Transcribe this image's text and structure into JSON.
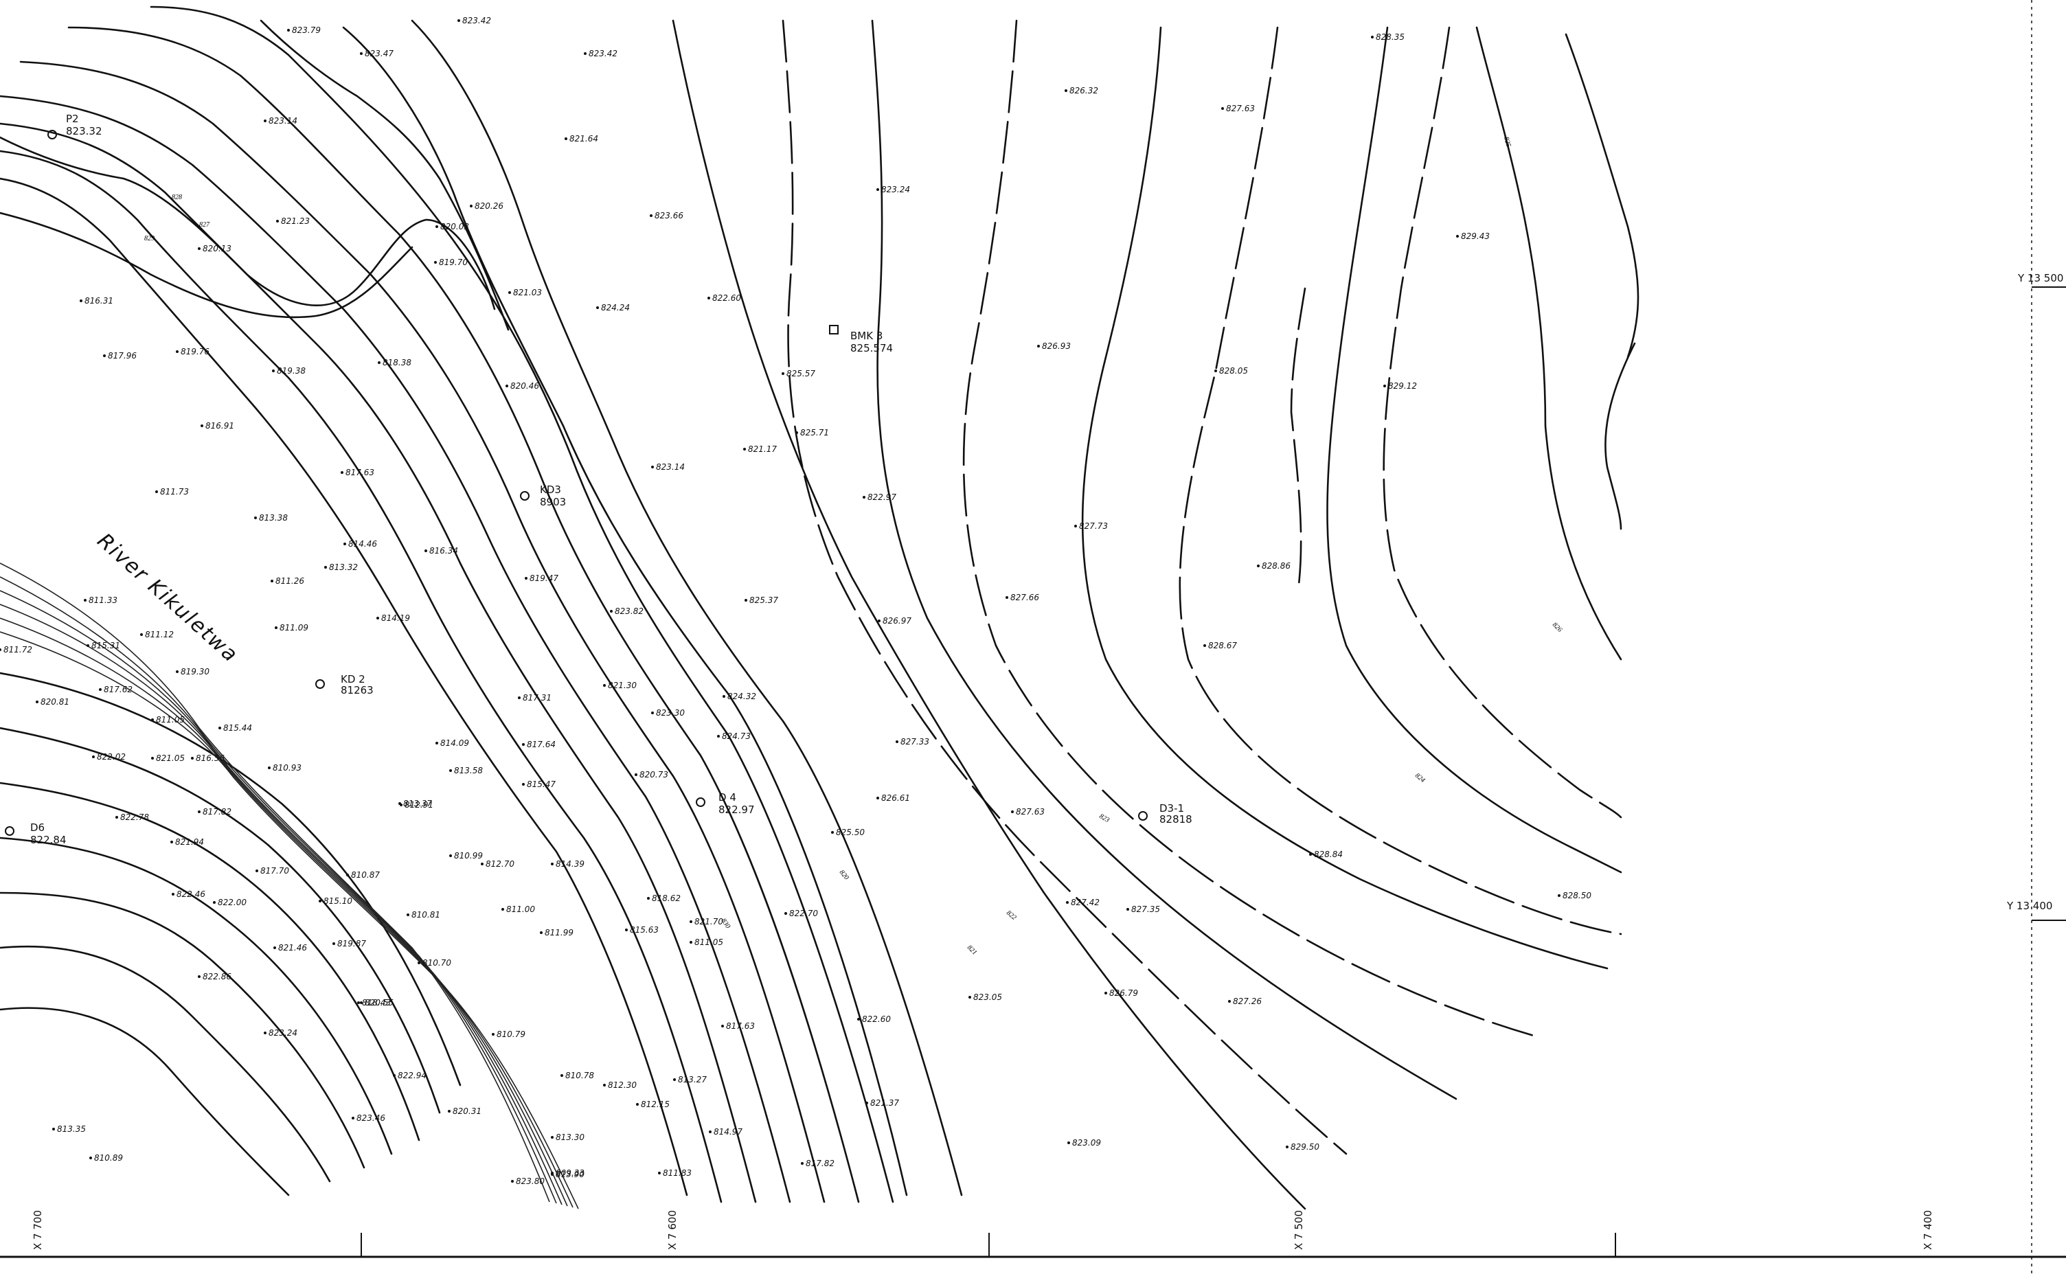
{
  "river": {
    "name": "River Kikuletwa"
  },
  "stations": [
    {
      "id": "P2",
      "name": "P2",
      "elev": "823.32"
    },
    {
      "id": "BMK3",
      "name": "BMK 3",
      "elev": "825.574"
    },
    {
      "id": "KD3",
      "name": "KD3",
      "elev": "8903"
    },
    {
      "id": "KD2",
      "name": "KD 2",
      "elev": "81263"
    },
    {
      "id": "D4",
      "name": "D 4",
      "elev": "822.97"
    },
    {
      "id": "D3-1",
      "name": "D3-1",
      "elev": "82818"
    },
    {
      "id": "D6",
      "name": "D6",
      "elev": "822.84"
    }
  ],
  "spot_heights": [
    "823.79",
    "823.47",
    "823.42",
    "823.42",
    "823.14",
    "821.64",
    "826.32",
    "827.63",
    "828.35",
    "823.24",
    "820.26",
    "820.03",
    "821.03",
    "819.70",
    "823.66",
    "821.23",
    "820.13",
    "816.31",
    "817.96",
    "819.76",
    "819.38",
    "818.38",
    "820.46",
    "822.60",
    "824.24",
    "825.57",
    "825.71",
    "826.93",
    "828.05",
    "829.12",
    "829.43",
    "816.91",
    "817.63",
    "811.73",
    "813.38",
    "821.17",
    "823.14",
    "822.97",
    "827.73",
    "828.86",
    "814.46",
    "816.34",
    "813.32",
    "819.47",
    "811.26",
    "811.09",
    "814.19",
    "823.82",
    "825.37",
    "826.97",
    "827.66",
    "828.67",
    "811.33",
    "815.31",
    "811.72",
    "811.12",
    "819.30",
    "817.62",
    "820.81",
    "811.05",
    "817.31",
    "821.30",
    "823.30",
    "824.32",
    "824.73",
    "827.33",
    "815.44",
    "810.93",
    "814.09",
    "817.64",
    "822.02",
    "821.05",
    "816.56",
    "813.58",
    "815.47",
    "820.73",
    "826.61",
    "822.78",
    "817.82",
    "813.37",
    "812.91",
    "827.63",
    "827.42",
    "827.35",
    "828.84",
    "828.50",
    "821.94",
    "817.70",
    "810.87",
    "810.99",
    "812.70",
    "814.39",
    "825.50",
    "822.46",
    "822.00",
    "815.10",
    "810.81",
    "811.00",
    "818.62",
    "815.63",
    "821.70",
    "822.70",
    "821.46",
    "819.87",
    "811.99",
    "822.86",
    "810.70",
    "811.05",
    "818.43",
    "823.05",
    "826.79",
    "827.26",
    "813.35",
    "822.60",
    "817.63",
    "823.24",
    "820.55",
    "810.79",
    "812.30",
    "810.78",
    "821.37",
    "813.27",
    "822.94",
    "820.31",
    "812.15",
    "814.97",
    "823.09",
    "829.50",
    "823.46",
    "813.30",
    "810.89",
    "817.82",
    "823.80",
    "813.90",
    "809.33",
    "811.83"
  ],
  "contour_labels": [
    "820",
    "821",
    "822",
    "823",
    "824",
    "825",
    "826",
    "827",
    "828",
    "829",
    "830"
  ],
  "grid": {
    "x": [
      "X 7 700",
      "X 7 600",
      "X 7 500",
      "X 7 400"
    ],
    "y": [
      "Y 13 500",
      "Y 13 400"
    ]
  }
}
